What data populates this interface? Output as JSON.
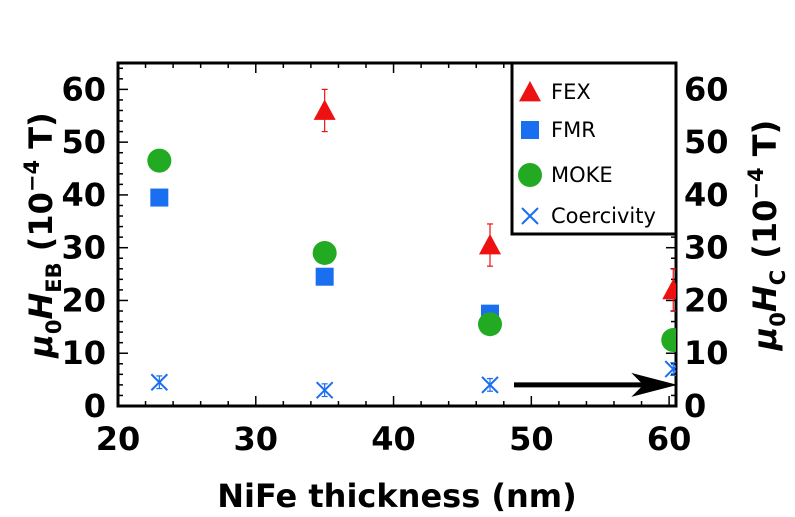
{
  "chart_data": {
    "type": "scatter",
    "xlabel": "NiFe thickness (nm)",
    "ylabel_left": {
      "prefix": "μ",
      "sub0": "0",
      "main": "H",
      "sub": "EB",
      "unit_open": " (10",
      "exp": "−4",
      "unit_close": " T)"
    },
    "ylabel_right": {
      "prefix": "μ",
      "sub0": "0",
      "main": "H",
      "sub": "C",
      "unit_open": " (10",
      "exp": "−4",
      "unit_close": " T)"
    },
    "xlim": [
      20,
      60.5
    ],
    "ylim": [
      0,
      65
    ],
    "x_ticks": [
      "20",
      "30",
      "40",
      "50",
      "60"
    ],
    "x_tick_values": [
      20,
      30,
      40,
      50,
      60
    ],
    "y_ticks": [
      "0",
      "10",
      "20",
      "30",
      "40",
      "50",
      "60"
    ],
    "y_tick_values": [
      0,
      10,
      20,
      30,
      40,
      50,
      60
    ],
    "legend_position": "top-right",
    "series": [
      {
        "name": "FEX",
        "marker": "triangle",
        "color": "#ee1111",
        "points": [
          {
            "x": 35,
            "y": 56,
            "err": 4
          },
          {
            "x": 47,
            "y": 30.5,
            "err": 4
          },
          {
            "x": 60.3,
            "y": 22,
            "err": 4
          }
        ]
      },
      {
        "name": "FMR",
        "marker": "square",
        "color": "#1a6ef0",
        "points": [
          {
            "x": 23,
            "y": 39.5
          },
          {
            "x": 35,
            "y": 24.5
          },
          {
            "x": 47,
            "y": 17.5
          }
        ]
      },
      {
        "name": "MOKE",
        "marker": "circle",
        "color": "#22aa22",
        "points": [
          {
            "x": 23,
            "y": 46.5
          },
          {
            "x": 35,
            "y": 29
          },
          {
            "x": 47,
            "y": 15.5
          },
          {
            "x": 60.3,
            "y": 12.5
          }
        ]
      },
      {
        "name": "Coercivity",
        "marker": "cross",
        "color": "#1a6ef0",
        "points": [
          {
            "x": 23,
            "y": 4.5,
            "err": 1.2
          },
          {
            "x": 35,
            "y": 3,
            "err": 1.2
          },
          {
            "x": 47,
            "y": 4,
            "err": 1.2
          },
          {
            "x": 60.3,
            "y": 7,
            "err": 1.2
          }
        ]
      }
    ],
    "annotations": [
      {
        "type": "arrow",
        "direction": "right",
        "from": {
          "x": 47,
          "y": 4
        },
        "to": {
          "x": 59,
          "y": 4
        },
        "meaning": "Coercivity refers to right axis"
      }
    ]
  }
}
